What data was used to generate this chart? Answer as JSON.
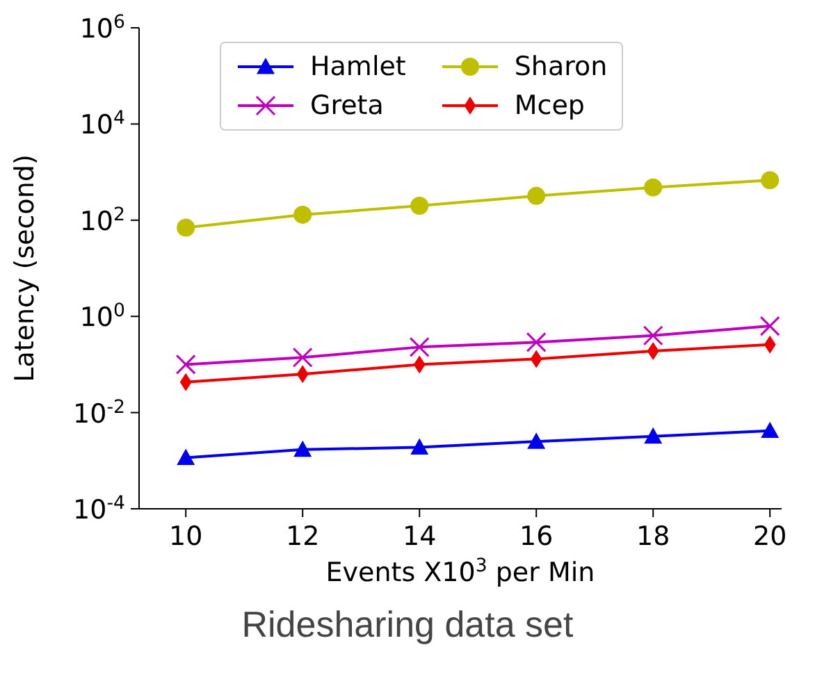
{
  "chart_data": {
    "type": "line",
    "title": "Ridesharing data set",
    "xlabel": "Events X10$^{3}$ per Min",
    "ylabel": "Latency (second)",
    "x": [
      10,
      12,
      14,
      16,
      18,
      20
    ],
    "log": "y",
    "xlim": [
      9.2,
      20.2
    ],
    "xticks": [
      10,
      12,
      14,
      16,
      18,
      20
    ],
    "ylim": [
      0.0001,
      1000000
    ],
    "yticks": [
      {
        "value": 0.0001,
        "label": "10$^{-4}$"
      },
      {
        "value": 0.01,
        "label": "10$^{-2}$"
      },
      {
        "value": 1,
        "label": "10$^{0}$"
      },
      {
        "value": 100,
        "label": "10$^{2}$"
      },
      {
        "value": 10000,
        "label": "10$^{4}$"
      },
      {
        "value": 1000000,
        "label": "10$^{6}$"
      }
    ],
    "grid": false,
    "legend": "top",
    "line_style": "solid",
    "series": [
      {
        "name": "Hamlet",
        "color": "#0000ee",
        "marker": "triangle",
        "values": [
          0.00115,
          0.0017,
          0.0019,
          0.0025,
          0.0032,
          0.0042
        ]
      },
      {
        "name": "Greta",
        "color": "#bf00bf",
        "marker": "cross",
        "values": [
          0.1,
          0.14,
          0.23,
          0.29,
          0.4,
          0.63
        ]
      },
      {
        "name": "Sharon",
        "color": "#bfbf00",
        "marker": "circle",
        "values": [
          70,
          130,
          200,
          320,
          480,
          680
        ]
      },
      {
        "name": "Mcep",
        "color": "#ee0000",
        "marker": "diamond",
        "values": [
          0.043,
          0.063,
          0.1,
          0.13,
          0.19,
          0.26
        ]
      }
    ]
  }
}
